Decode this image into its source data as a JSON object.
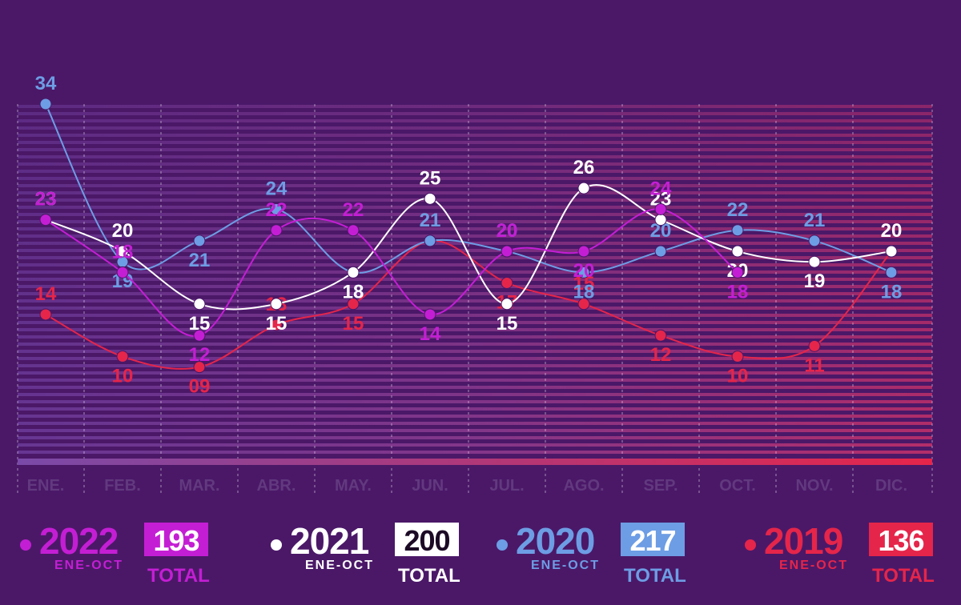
{
  "chart_data": {
    "type": "line",
    "categories": [
      "ENE.",
      "FEB.",
      "MAR.",
      "ABR.",
      "MAY.",
      "JUN.",
      "JUL.",
      "AGO.",
      "SEP.",
      "OCT.",
      "NOV.",
      "DIC."
    ],
    "ylim": [
      0,
      34
    ],
    "legend_period": "ENE-OCT",
    "legend_total_label": "TOTAL",
    "series": [
      {
        "name": "2022",
        "color": "#c41ed4",
        "total": 193,
        "values": [
          23,
          18,
          12,
          22,
          22,
          14,
          20,
          20,
          24,
          18,
          null,
          null
        ]
      },
      {
        "name": "2021",
        "color": "#ffffff",
        "total": 200,
        "values": [
          23,
          20,
          15,
          15,
          18,
          25,
          15,
          26,
          23,
          20,
          19,
          20
        ]
      },
      {
        "name": "2020",
        "color": "#6d9de4",
        "total": 217,
        "values": [
          34,
          19,
          21,
          24,
          18,
          21,
          20,
          18,
          20,
          22,
          21,
          18
        ]
      },
      {
        "name": "2019",
        "color": "#e5254a",
        "total": 136,
        "values": [
          14,
          10,
          9,
          13,
          15,
          21,
          17,
          15,
          12,
          10,
          11,
          20
        ],
        "value_labels": [
          "14",
          "10",
          "09",
          "13",
          "15",
          "21",
          "17",
          "15",
          "12",
          "10",
          "11",
          "20"
        ]
      }
    ]
  }
}
